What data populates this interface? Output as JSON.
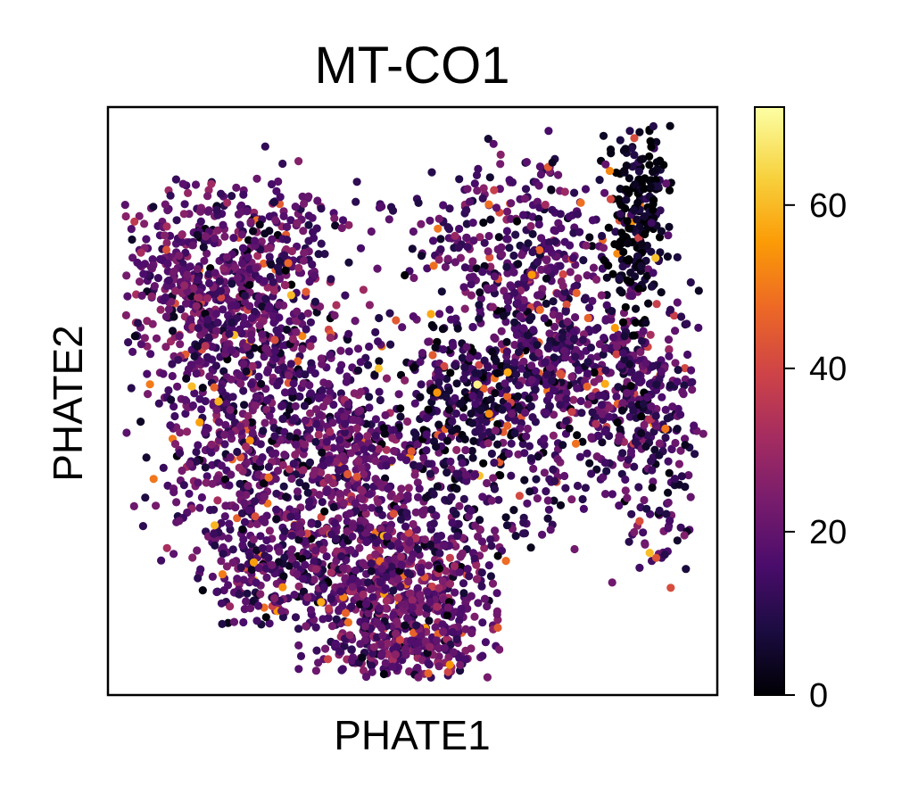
{
  "chart_data": {
    "type": "scatter",
    "title": "MT-CO1",
    "xlabel": "PHATE1",
    "ylabel": "PHATE2",
    "x_ticks_shown": false,
    "y_ticks_shown": false,
    "grid": false,
    "legend": "none",
    "point_count_approx": 4500,
    "colormap": "inferno",
    "colorbar": {
      "min": 0,
      "max": 72,
      "ticks": [
        0,
        20,
        40,
        60
      ],
      "tick_labels": [
        "0",
        "20",
        "40",
        "60"
      ],
      "placement": "right"
    },
    "colormap_stops": [
      "#000004",
      "#1b0c41",
      "#4a0c6b",
      "#781c6d",
      "#a52c60",
      "#cf4446",
      "#ed6925",
      "#fb9b06",
      "#f7d13d",
      "#fcffa4"
    ]
  }
}
